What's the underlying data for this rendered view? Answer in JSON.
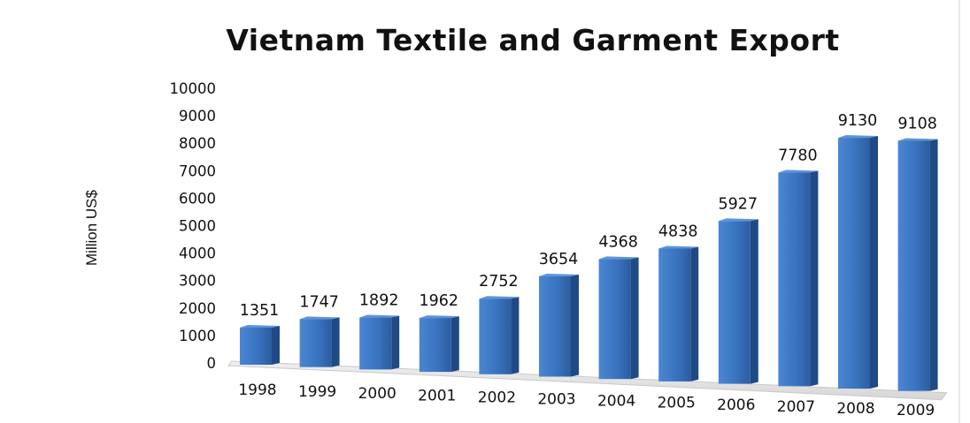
{
  "chart_data": {
    "type": "bar",
    "title": "Vietnam Textile and Garment Export",
    "xlabel": "",
    "ylabel": "Million US$",
    "categories": [
      "1998",
      "1999",
      "2000",
      "2001",
      "2002",
      "2003",
      "2004",
      "2005",
      "2006",
      "2007",
      "2008",
      "2009"
    ],
    "values": [
      1351,
      1747,
      1892,
      1962,
      2752,
      3654,
      4368,
      4838,
      5927,
      7780,
      9130,
      9108
    ],
    "ylim": [
      0,
      10000
    ],
    "yticks": [
      "0",
      "1000",
      "2000",
      "3000",
      "4000",
      "5000",
      "6000",
      "7000",
      "8000",
      "9000",
      "10000"
    ],
    "data_labels": [
      "1351",
      "1747",
      "1892",
      "1962",
      "2752",
      "3654",
      "4368",
      "4838",
      "5927",
      "7780",
      "9130",
      "9108"
    ],
    "grid": false,
    "legend": "none",
    "bar_color": "#3a74c0"
  }
}
